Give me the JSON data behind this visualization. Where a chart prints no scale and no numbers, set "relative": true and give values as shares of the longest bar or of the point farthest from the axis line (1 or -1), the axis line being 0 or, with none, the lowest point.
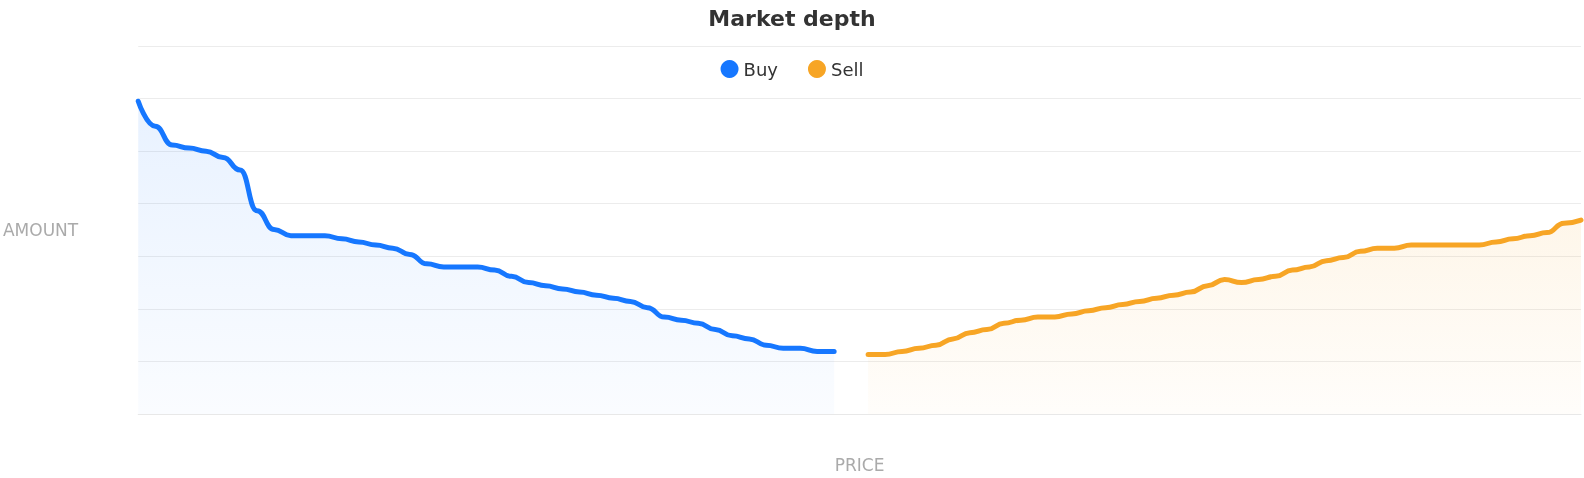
{
  "chart_data": {
    "type": "area",
    "title": "Market depth",
    "xlabel": "PRICE",
    "ylabel": "AMOUNT",
    "relative": true,
    "grid": "y",
    "legend": "top",
    "categories": [
      null,
      null,
      null,
      null,
      null,
      null,
      null,
      null,
      null,
      null,
      null,
      null,
      null,
      null,
      null,
      null,
      null,
      null,
      null,
      null,
      null,
      null,
      null,
      null,
      null,
      null,
      null,
      null,
      null,
      null,
      null,
      null,
      null,
      null,
      null,
      null,
      null,
      null,
      null,
      null,
      null,
      null,
      null,
      null,
      null,
      null,
      null,
      null,
      null,
      null,
      null,
      null,
      null,
      null,
      null,
      null,
      null,
      null,
      null,
      null,
      null,
      null,
      null,
      null,
      null,
      null,
      null,
      null,
      null,
      null,
      null,
      null,
      null,
      null,
      null,
      null,
      null,
      null,
      null,
      null,
      null,
      null,
      null,
      null,
      null,
      null
    ],
    "series": [
      {
        "name": "Buy",
        "color": "#1677ff",
        "values": [
          1.0,
          0.92,
          0.86,
          0.85,
          0.84,
          0.82,
          0.78,
          0.65,
          0.59,
          0.57,
          0.57,
          0.57,
          0.56,
          0.55,
          0.54,
          0.53,
          0.51,
          0.48,
          0.47,
          0.47,
          0.47,
          0.46,
          0.44,
          0.42,
          0.41,
          0.4,
          0.39,
          0.38,
          0.37,
          0.36,
          0.34,
          0.31,
          0.3,
          0.29,
          0.27,
          0.25,
          0.24,
          0.22,
          0.21,
          0.21,
          0.2,
          0.2,
          null,
          null,
          null,
          null,
          null,
          null,
          null,
          null,
          null,
          null,
          null,
          null,
          null,
          null,
          null,
          null,
          null,
          null,
          null,
          null,
          null,
          null,
          null,
          null,
          null,
          null,
          null,
          null,
          null,
          null,
          null,
          null,
          null,
          null,
          null,
          null,
          null,
          null,
          null,
          null,
          null,
          null,
          null,
          null
        ]
      },
      {
        "name": "Sell",
        "color": "#f7a525",
        "values": [
          null,
          null,
          null,
          null,
          null,
          null,
          null,
          null,
          null,
          null,
          null,
          null,
          null,
          null,
          null,
          null,
          null,
          null,
          null,
          null,
          null,
          null,
          null,
          null,
          null,
          null,
          null,
          null,
          null,
          null,
          null,
          null,
          null,
          null,
          null,
          null,
          null,
          null,
          null,
          null,
          null,
          null,
          null,
          0.19,
          0.19,
          0.2,
          0.21,
          0.22,
          0.24,
          0.26,
          0.27,
          0.29,
          0.3,
          0.31,
          0.31,
          0.32,
          0.33,
          0.34,
          0.35,
          0.36,
          0.37,
          0.38,
          0.39,
          0.41,
          0.43,
          0.42,
          0.43,
          0.44,
          0.46,
          0.47,
          0.49,
          0.5,
          0.52,
          0.53,
          0.53,
          0.54,
          0.54,
          0.54,
          0.54,
          0.54,
          0.55,
          0.56,
          0.57,
          0.58,
          0.61,
          0.62
        ]
      }
    ]
  }
}
